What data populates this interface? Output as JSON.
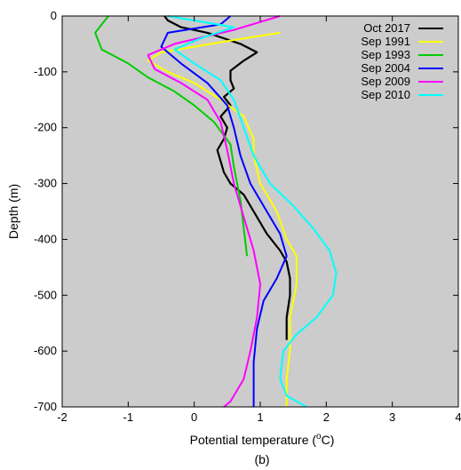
{
  "panel_label": "(b)",
  "chart_data": {
    "type": "line",
    "title": "",
    "xlabel": "Potential temperature (",
    "xlabel_sup": "o",
    "xlabel_unit": "C)",
    "ylabel": "Depth (m)",
    "xlim": [
      -2,
      4
    ],
    "ylim": [
      -700,
      0
    ],
    "xticks": [
      "-2",
      "-1",
      "0",
      "1",
      "2",
      "3",
      "4"
    ],
    "yticks": [
      "0",
      "-100",
      "-200",
      "-300",
      "-400",
      "-500",
      "-600",
      "-700"
    ],
    "grid": false,
    "legend_position": "top-right",
    "background": "#cccccc",
    "series": [
      {
        "name": "Oct 2017",
        "color": "#000000",
        "data": [
          [
            -0.45,
            0
          ],
          [
            -0.4,
            -8
          ],
          [
            -0.2,
            -20
          ],
          [
            0.2,
            -30
          ],
          [
            0.5,
            -42
          ],
          [
            0.7,
            -50
          ],
          [
            0.95,
            -65
          ],
          [
            0.75,
            -80
          ],
          [
            0.55,
            -98
          ],
          [
            0.55,
            -115
          ],
          [
            0.6,
            -130
          ],
          [
            0.45,
            -145
          ],
          [
            0.55,
            -160
          ],
          [
            0.4,
            -180
          ],
          [
            0.5,
            -200
          ],
          [
            0.45,
            -220
          ],
          [
            0.35,
            -240
          ],
          [
            0.4,
            -260
          ],
          [
            0.45,
            -280
          ],
          [
            0.55,
            -300
          ],
          [
            0.75,
            -320
          ],
          [
            0.9,
            -350
          ],
          [
            1.1,
            -390
          ],
          [
            1.3,
            -420
          ],
          [
            1.4,
            -440
          ],
          [
            1.45,
            -470
          ],
          [
            1.45,
            -500
          ],
          [
            1.4,
            -540
          ],
          [
            1.4,
            -580
          ]
        ]
      },
      {
        "name": "Sep 1991",
        "color": "#ffff00",
        "data": [
          [
            1.3,
            -30
          ],
          [
            0.5,
            -45
          ],
          [
            0.0,
            -55
          ],
          [
            -0.5,
            -65
          ],
          [
            -0.7,
            -80
          ],
          [
            -0.4,
            -100
          ],
          [
            0.0,
            -120
          ],
          [
            0.4,
            -150
          ],
          [
            0.75,
            -180
          ],
          [
            0.9,
            -220
          ],
          [
            0.9,
            -250
          ],
          [
            1.0,
            -300
          ],
          [
            1.25,
            -350
          ],
          [
            1.4,
            -400
          ],
          [
            1.55,
            -430
          ],
          [
            1.55,
            -480
          ],
          [
            1.45,
            -540
          ],
          [
            1.45,
            -600
          ],
          [
            1.4,
            -650
          ],
          [
            1.4,
            -700
          ]
        ]
      },
      {
        "name": "Sep 1993",
        "color": "#00cc00",
        "data": [
          [
            -1.3,
            0
          ],
          [
            -1.5,
            -30
          ],
          [
            -1.4,
            -60
          ],
          [
            -1.0,
            -85
          ],
          [
            -0.7,
            -110
          ],
          [
            -0.3,
            -135
          ],
          [
            0.0,
            -160
          ],
          [
            0.3,
            -190
          ],
          [
            0.55,
            -230
          ],
          [
            0.6,
            -270
          ],
          [
            0.7,
            -330
          ],
          [
            0.75,
            -380
          ],
          [
            0.8,
            -430
          ]
        ]
      },
      {
        "name": "Sep 2004",
        "color": "#0000ff",
        "data": [
          [
            0.55,
            0
          ],
          [
            0.4,
            -15
          ],
          [
            -0.4,
            -30
          ],
          [
            -0.5,
            -55
          ],
          [
            -0.2,
            -85
          ],
          [
            0.2,
            -120
          ],
          [
            0.5,
            -160
          ],
          [
            0.6,
            -200
          ],
          [
            0.7,
            -250
          ],
          [
            0.85,
            -300
          ],
          [
            1.1,
            -350
          ],
          [
            1.3,
            -390
          ],
          [
            1.4,
            -430
          ],
          [
            1.25,
            -470
          ],
          [
            1.05,
            -510
          ],
          [
            0.95,
            -560
          ],
          [
            0.9,
            -620
          ],
          [
            0.9,
            -660
          ],
          [
            0.9,
            -700
          ]
        ]
      },
      {
        "name": "Sep 2009",
        "color": "#ff00ff",
        "data": [
          [
            1.3,
            0
          ],
          [
            0.6,
            -25
          ],
          [
            -0.3,
            -50
          ],
          [
            -0.7,
            -70
          ],
          [
            -0.6,
            -95
          ],
          [
            -0.2,
            -120
          ],
          [
            0.2,
            -150
          ],
          [
            0.4,
            -190
          ],
          [
            0.5,
            -240
          ],
          [
            0.6,
            -300
          ],
          [
            0.75,
            -360
          ],
          [
            0.9,
            -420
          ],
          [
            1.0,
            -480
          ],
          [
            0.95,
            -540
          ],
          [
            0.85,
            -600
          ],
          [
            0.75,
            -650
          ],
          [
            0.55,
            -690
          ],
          [
            0.45,
            -700
          ]
        ]
      },
      {
        "name": "Sep 2010",
        "color": "#00ffff",
        "data": [
          [
            -0.4,
            0
          ],
          [
            0.6,
            -20
          ],
          [
            0.1,
            -40
          ],
          [
            -0.3,
            -60
          ],
          [
            0.0,
            -85
          ],
          [
            0.4,
            -115
          ],
          [
            0.6,
            -150
          ],
          [
            0.75,
            -200
          ],
          [
            0.9,
            -250
          ],
          [
            1.15,
            -300
          ],
          [
            1.5,
            -340
          ],
          [
            1.8,
            -380
          ],
          [
            2.05,
            -420
          ],
          [
            2.15,
            -460
          ],
          [
            2.1,
            -500
          ],
          [
            1.85,
            -540
          ],
          [
            1.55,
            -570
          ],
          [
            1.35,
            -600
          ],
          [
            1.3,
            -650
          ],
          [
            1.4,
            -680
          ],
          [
            1.7,
            -700
          ]
        ]
      }
    ]
  }
}
